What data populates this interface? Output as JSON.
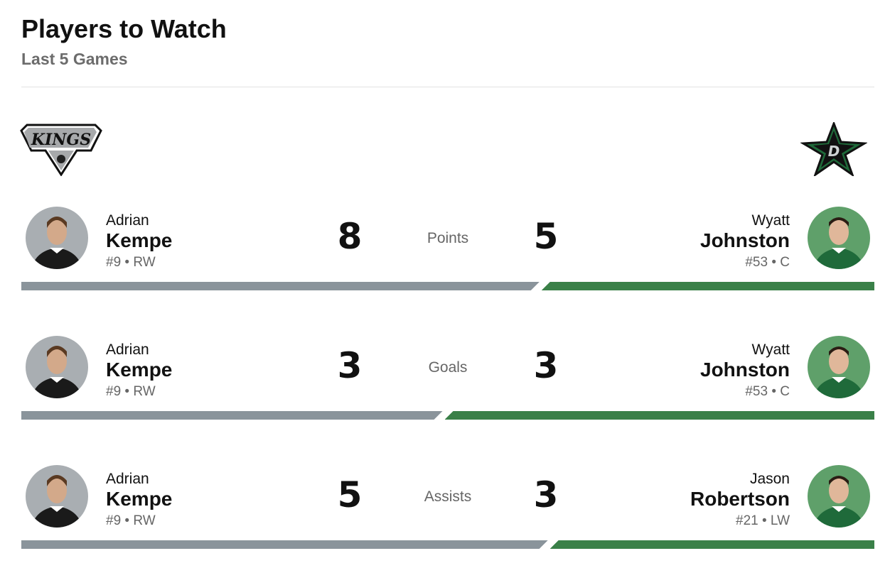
{
  "header": {
    "title": "Players to Watch",
    "subtitle": "Last 5 Games"
  },
  "teams": {
    "home": {
      "name": "Los Angeles Kings",
      "logo_text": "KINGS",
      "color": "#8a949b"
    },
    "away": {
      "name": "Dallas Stars",
      "logo_text": "D",
      "color": "#3a8048"
    }
  },
  "rows": [
    {
      "stat": "Points",
      "left": {
        "first": "Adrian",
        "last": "Kempe",
        "meta": "#9 • RW",
        "value": "8"
      },
      "right": {
        "first": "Wyatt",
        "last": "Johnston",
        "meta": "#53 • C",
        "value": "5"
      },
      "left_share": 0.615
    },
    {
      "stat": "Goals",
      "left": {
        "first": "Adrian",
        "last": "Kempe",
        "meta": "#9 • RW",
        "value": "3"
      },
      "right": {
        "first": "Wyatt",
        "last": "Johnston",
        "meta": "#53 • C",
        "value": "3"
      },
      "left_share": 0.5
    },
    {
      "stat": "Assists",
      "left": {
        "first": "Adrian",
        "last": "Kempe",
        "meta": "#9 • RW",
        "value": "5"
      },
      "right": {
        "first": "Jason",
        "last": "Robertson",
        "meta": "#21 • LW",
        "value": "3"
      },
      "left_share": 0.625
    }
  ]
}
